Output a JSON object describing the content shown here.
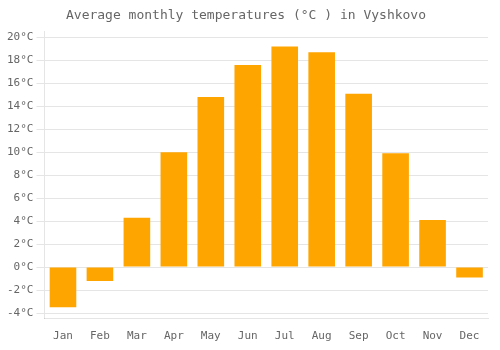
{
  "chart_data": {
    "type": "bar",
    "title": "Average monthly temperatures (°C ) in Vyshkovo",
    "categories": [
      "Jan",
      "Feb",
      "Mar",
      "Apr",
      "May",
      "Jun",
      "Jul",
      "Aug",
      "Sep",
      "Oct",
      "Nov",
      "Dec"
    ],
    "values": [
      -3.5,
      -1.2,
      4.3,
      10.0,
      14.8,
      17.6,
      19.2,
      18.7,
      15.1,
      9.9,
      4.1,
      -0.9
    ],
    "color": "#FFA500",
    "ylim": [
      -4.5,
      20.5
    ],
    "yticks": [
      {
        "value": -4,
        "label": "-4°C"
      },
      {
        "value": -2,
        "label": "-2°C"
      },
      {
        "value": 0,
        "label": "0°C"
      },
      {
        "value": 2,
        "label": "2°C"
      },
      {
        "value": 4,
        "label": "4°C"
      },
      {
        "value": 6,
        "label": "6°C"
      },
      {
        "value": 8,
        "label": "8°C"
      },
      {
        "value": 10,
        "label": "10°C"
      },
      {
        "value": 12,
        "label": "12°C"
      },
      {
        "value": 14,
        "label": "14°C"
      },
      {
        "value": 16,
        "label": "16°C"
      },
      {
        "value": 18,
        "label": "18°C"
      },
      {
        "value": 20,
        "label": "20°C"
      }
    ],
    "grid": true
  }
}
